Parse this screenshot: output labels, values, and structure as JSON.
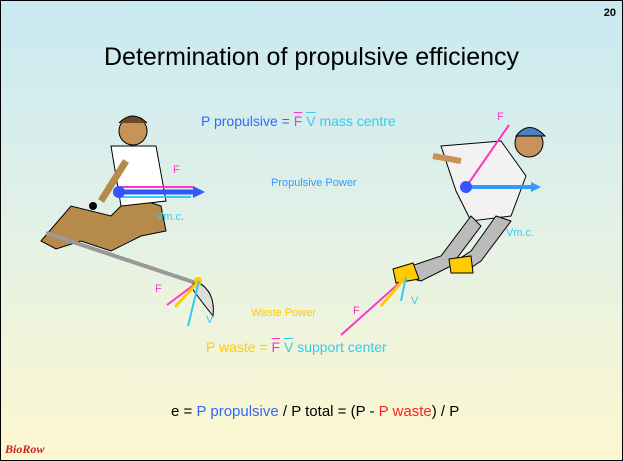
{
  "slide_number": "20",
  "title": "Determination of propulsive efficiency",
  "propulsive_formula": {
    "lhs": "P propulsive =",
    "force": "F",
    "velocity": "V",
    "rhs": "mass centre"
  },
  "propulsive_power_label": "Propulsive Power",
  "waste_power_label": "Waste Power",
  "waste_formula": {
    "lhs": "P waste =",
    "force": "F",
    "velocity": "V",
    "rhs": "support center"
  },
  "rower": {
    "force_label": "F",
    "velocity_label": "Vm.c.",
    "blade_force_label": "F",
    "blade_velocity_label": "V"
  },
  "runner": {
    "force_label": "F",
    "velocity_label": "Vm.c.",
    "foot_force_label": "F",
    "foot_velocity_label": "V"
  },
  "efficiency_formula": {
    "e": "e =",
    "p_propulsive": "P propulsive",
    "mid": "/ P total = (P -",
    "p_waste": "P waste",
    "end": ") / P"
  },
  "logo": "BioRow"
}
